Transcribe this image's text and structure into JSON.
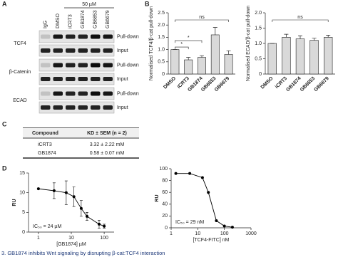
{
  "figure": {
    "panel_labels": [
      "A",
      "B",
      "C",
      "D"
    ],
    "blot": {
      "concentration": "50 µM",
      "lanes": [
        "IgG",
        "DMSO",
        "iCRT3",
        "GB1874",
        "GB6853",
        "GB6679"
      ],
      "rows": [
        {
          "protein": "TCF4",
          "fractions": [
            "Pull-down",
            "Input"
          ]
        },
        {
          "protein": "β-Catenin",
          "fractions": [
            "Pull-down",
            "Input"
          ]
        },
        {
          "protein": "ECAD",
          "fractions": [
            "Pull-down",
            "Input"
          ]
        }
      ]
    },
    "table": {
      "header": [
        "Compound",
        "KD ± SEM (n = 2)"
      ],
      "rows": [
        [
          "iCRT3",
          "3.32 ± 2.22 mM"
        ],
        [
          "GB1874",
          "0.58 ± 0.07 mM"
        ]
      ]
    },
    "caption": "3. GB1874 inhibits Wnt signaling by disrupting β-cat:TCF4 interaction"
  },
  "chart_data": [
    {
      "type": "bar",
      "y_label": "Normalised TCF4/β-cat pull-down",
      "categories": [
        "DMSO",
        "iCRT3",
        "GB1874",
        "GB6853",
        "GB6679"
      ],
      "values": [
        1.0,
        0.58,
        0.68,
        1.6,
        0.8
      ],
      "errors": [
        0,
        0.1,
        0.07,
        0.3,
        0.15
      ],
      "color": "#d9d9d9",
      "ylim": [
        0,
        2.5
      ],
      "yticks": [
        0,
        0.5,
        {
          "value": 1,
          "label": "1.0"
        },
        1.5,
        {
          "value": 2,
          "label": "2.0"
        },
        2.5
      ],
      "annotations": [
        {
          "label": "ns",
          "from": "DMSO",
          "to": "GB6679"
        },
        {
          "label": "*",
          "from": "DMSO",
          "to": "GB1874"
        },
        {
          "label": "*",
          "from": "DMSO",
          "to": "iCRT3"
        }
      ]
    },
    {
      "type": "bar",
      "y_label": "Normalised ECAD/β-cat pull-down",
      "categories": [
        "DMSO",
        "iCRT3",
        "GB1874",
        "GB6853",
        "GB6679"
      ],
      "values": [
        1.0,
        1.2,
        1.15,
        1.1,
        1.2
      ],
      "errors": [
        0,
        0.1,
        0.1,
        0.07,
        0.07
      ],
      "color": "#d9d9d9",
      "ylim": [
        0,
        2
      ],
      "yticks": [
        0,
        0.5,
        {
          "value": 1,
          "label": "1.0"
        },
        1.5,
        {
          "value": 2,
          "label": "2.0"
        }
      ],
      "annotations": [
        {
          "label": "ns",
          "from": "DMSO",
          "to": "GB6679"
        }
      ]
    },
    {
      "type": "line",
      "x_label": "[GB1874] µM",
      "y_label": "RU",
      "xscale": "log",
      "x": [
        1,
        3,
        7,
        12,
        20,
        30,
        70,
        100
      ],
      "values": [
        11,
        10.5,
        10,
        9,
        6,
        4,
        2,
        1.5
      ],
      "errors": [
        0,
        2,
        3,
        2.5,
        2,
        1,
        1,
        0.5
      ],
      "color": "#000000",
      "xlim": [
        0.5,
        200
      ],
      "xticks": [
        1,
        10,
        100
      ],
      "ylim": [
        0,
        15
      ],
      "yticks": [
        0,
        5,
        10,
        15
      ],
      "annotation": "IC₅₀ = 24 µM"
    },
    {
      "type": "line",
      "x_label": "[TCF4-FITC] nM",
      "y_label": "RU",
      "xscale": "log",
      "x": [
        1.5,
        5,
        15,
        25,
        50,
        100,
        200
      ],
      "values": [
        92,
        92,
        85,
        60,
        12,
        3,
        1
      ],
      "color": "#000000",
      "xlim": [
        1,
        1000
      ],
      "xticks": [
        1,
        10,
        100,
        1000
      ],
      "ylim": [
        0,
        100
      ],
      "yticks": [
        0,
        20,
        40,
        60,
        80,
        100
      ],
      "annotation": "IC₅₀ = 29 nM"
    }
  ]
}
